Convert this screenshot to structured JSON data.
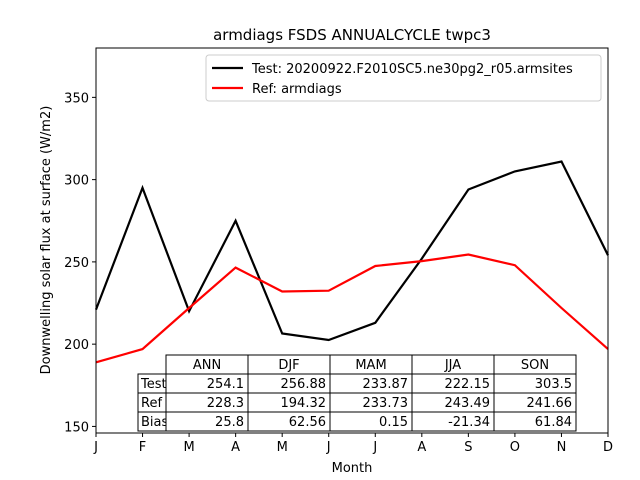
{
  "chart_data": {
    "type": "line",
    "title": "armdiags FSDS ANNUALCYCLE twpc3",
    "xlabel": "Month",
    "ylabel": "Downwelling solar flux at surface (W/m2)",
    "x_ticks": [
      "J",
      "F",
      "M",
      "A",
      "M",
      "J",
      "J",
      "A",
      "S",
      "O",
      "N",
      "D"
    ],
    "y_ticks": [
      150,
      200,
      250,
      300,
      350
    ],
    "ylim": [
      146,
      380
    ],
    "legend_position": "top-right",
    "series": [
      {
        "name": "Test: 20200922.F2010SC5.ne30pg2_r05.armsites",
        "color": "#000000",
        "values": [
          221,
          295,
          220,
          275,
          206.5,
          202.5,
          213,
          252,
          294,
          305,
          311,
          254
        ]
      },
      {
        "name": "Ref: armdiags",
        "color": "#ff0000",
        "values": [
          189,
          197,
          222,
          246.5,
          232,
          232.5,
          247.5,
          250.5,
          254.5,
          248,
          222,
          197
        ]
      }
    ],
    "stats_table": {
      "columns": [
        "ANN",
        "DJF",
        "MAM",
        "JJA",
        "SON"
      ],
      "rows": [
        {
          "label": "Test",
          "values": [
            "254.1",
            "256.88",
            "233.87",
            "222.15",
            "303.5"
          ]
        },
        {
          "label": "Ref",
          "values": [
            "228.3",
            "194.32",
            "233.73",
            "243.49",
            "241.66"
          ]
        },
        {
          "label": "Bias",
          "values": [
            "25.8",
            "62.56",
            "0.15",
            "-21.34",
            "61.84"
          ]
        }
      ]
    }
  }
}
